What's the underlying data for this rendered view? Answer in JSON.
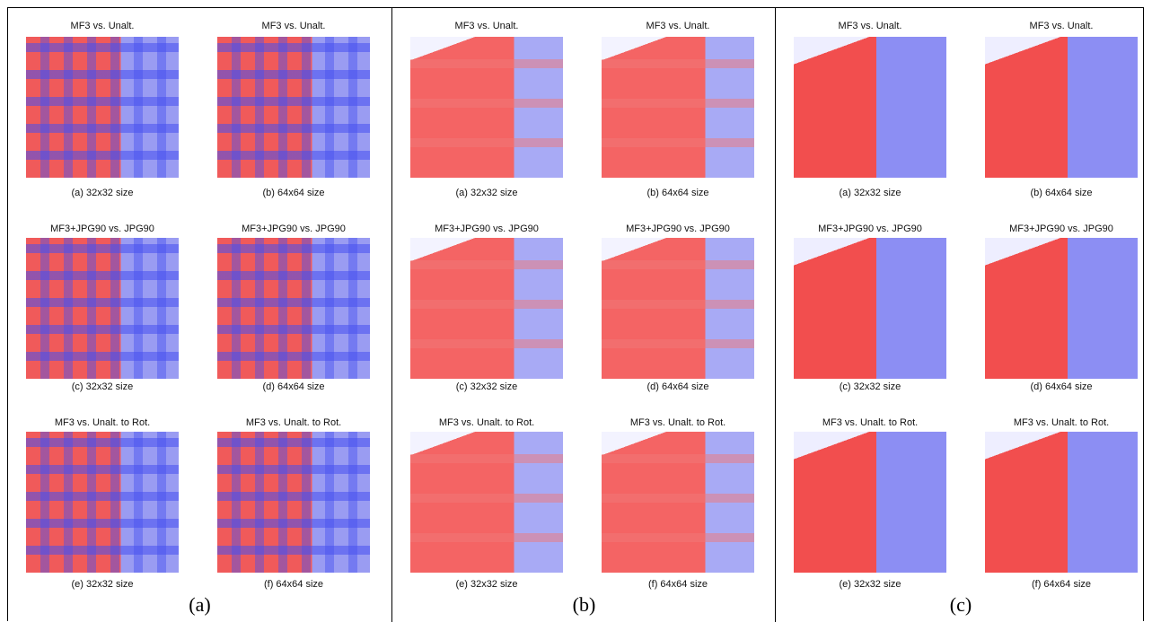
{
  "panels": [
    {
      "label": "(a)",
      "images": [
        {
          "title": "MF3 vs. Unalt.",
          "caption": "(a) 32x32 size"
        },
        {
          "title": "MF3 vs. Unalt.",
          "caption": "(b) 64x64 size"
        },
        {
          "title": "MF3+JPG90 vs. JPG90",
          "caption": "(c) 32x32 size"
        },
        {
          "title": "MF3+JPG90 vs. JPG90",
          "caption": "(d) 64x64 size"
        },
        {
          "title": "MF3 vs. Unalt. to Rot.",
          "caption": "(e) 32x32 size"
        },
        {
          "title": "MF3 vs. Unalt. to Rot.",
          "caption": "(f) 64x64 size"
        }
      ]
    },
    {
      "label": "(b)",
      "images": [
        {
          "title": "MF3 vs. Unalt.",
          "caption": "(a) 32x32 size"
        },
        {
          "title": "MF3 vs. Unalt.",
          "caption": "(b) 64x64 size"
        },
        {
          "title": "MF3+JPG90 vs. JPG90",
          "caption": "(c) 32x32 size"
        },
        {
          "title": "MF3+JPG90 vs. JPG90",
          "caption": "(d) 64x64 size"
        },
        {
          "title": "MF3 vs. Unalt. to Rot.",
          "caption": "(e) 32x32 size"
        },
        {
          "title": "MF3 vs. Unalt. to Rot.",
          "caption": "(f) 64x64 size"
        }
      ]
    },
    {
      "label": "(c)",
      "images": [
        {
          "title": "MF3 vs. Unalt.",
          "caption": "(a) 32x32 size"
        },
        {
          "title": "MF3 vs. Unalt.",
          "caption": "(b) 64x64 size"
        },
        {
          "title": "MF3+JPG90 vs. JPG90",
          "caption": "(c) 32x32 size"
        },
        {
          "title": "MF3+JPG90 vs. JPG90",
          "caption": "(d) 64x64 size"
        },
        {
          "title": "MF3 vs. Unalt. to Rot.",
          "caption": "(e) 32x32 size"
        },
        {
          "title": "MF3 vs. Unalt. to Rot.",
          "caption": "(f) 64x64 size"
        }
      ]
    }
  ]
}
